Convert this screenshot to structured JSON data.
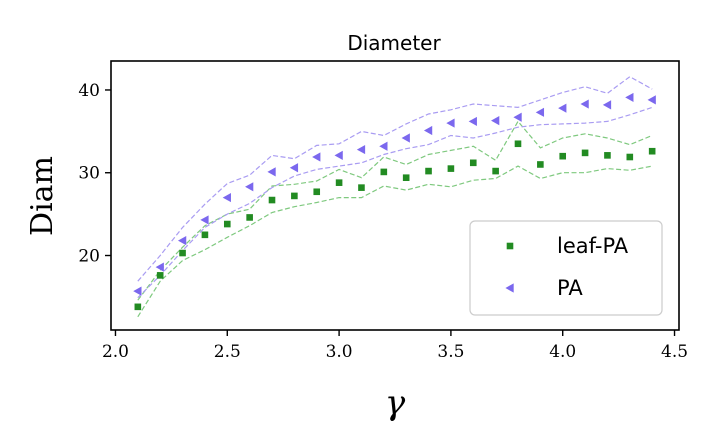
{
  "chart_data": {
    "type": "scatter",
    "title": "Diameter",
    "xlabel": "γ",
    "ylabel": "Diam",
    "xlim": [
      1.98,
      4.52
    ],
    "ylim": [
      11,
      43.5
    ],
    "xticks": [
      2.0,
      2.5,
      3.0,
      3.5,
      4.0,
      4.5
    ],
    "xtick_labels": [
      "2.0",
      "2.5",
      "3.0",
      "3.5",
      "4.0",
      "4.5"
    ],
    "yticks": [
      20,
      30,
      40
    ],
    "ytick_labels": [
      "20",
      "30",
      "40"
    ],
    "grid": false,
    "legend_position": "lower-right",
    "x": [
      2.1,
      2.2,
      2.3,
      2.4,
      2.5,
      2.6,
      2.7,
      2.8,
      2.9,
      3.0,
      3.1,
      3.2,
      3.3,
      3.4,
      3.5,
      3.6,
      3.7,
      3.8,
      3.9,
      4.0,
      4.1,
      4.2,
      4.3,
      4.4
    ],
    "series": [
      {
        "name": "leaf-PA",
        "color": "#228b22",
        "marker": "square",
        "values": [
          13.8,
          17.6,
          20.3,
          22.5,
          23.8,
          24.6,
          26.7,
          27.2,
          27.7,
          28.8,
          28.2,
          30.1,
          29.4,
          30.2,
          30.5,
          31.2,
          30.2,
          33.5,
          31.0,
          32.0,
          32.4,
          32.1,
          31.9,
          32.6
        ],
        "upper": [
          14.6,
          18.2,
          21.0,
          23.6,
          25.0,
          25.6,
          28.4,
          28.6,
          29.0,
          30.4,
          29.4,
          31.9,
          31.0,
          32.2,
          32.7,
          33.2,
          31.5,
          36.2,
          33.0,
          34.2,
          34.7,
          34.2,
          33.4,
          34.5
        ],
        "lower": [
          12.6,
          16.9,
          19.4,
          20.7,
          22.2,
          23.6,
          25.2,
          25.9,
          26.4,
          27.0,
          27.0,
          28.4,
          27.9,
          28.6,
          28.3,
          29.1,
          29.3,
          30.8,
          29.3,
          30.0,
          30.0,
          30.5,
          30.3,
          30.8
        ]
      },
      {
        "name": "PA",
        "color": "#7b68ee",
        "marker": "triangle-left",
        "values": [
          15.7,
          18.6,
          21.8,
          24.3,
          27.0,
          28.3,
          30.1,
          30.6,
          31.9,
          32.1,
          32.8,
          33.2,
          34.2,
          35.1,
          36.0,
          36.2,
          36.3,
          36.7,
          37.3,
          37.8,
          38.3,
          38.2,
          39.1,
          38.8
        ],
        "upper": [
          16.9,
          20.0,
          23.4,
          26.2,
          28.7,
          29.7,
          32.1,
          31.7,
          33.3,
          33.5,
          35.0,
          34.5,
          35.9,
          37.1,
          37.6,
          38.3,
          38.1,
          37.9,
          38.8,
          39.7,
          40.4,
          39.6,
          41.6,
          40.1
        ],
        "lower": [
          14.9,
          17.6,
          20.6,
          23.4,
          25.0,
          26.3,
          28.2,
          29.6,
          30.4,
          30.8,
          31.2,
          32.2,
          32.9,
          33.4,
          34.5,
          34.2,
          34.8,
          35.5,
          35.8,
          35.9,
          36.0,
          36.2,
          37.0,
          37.9
        ]
      }
    ]
  }
}
